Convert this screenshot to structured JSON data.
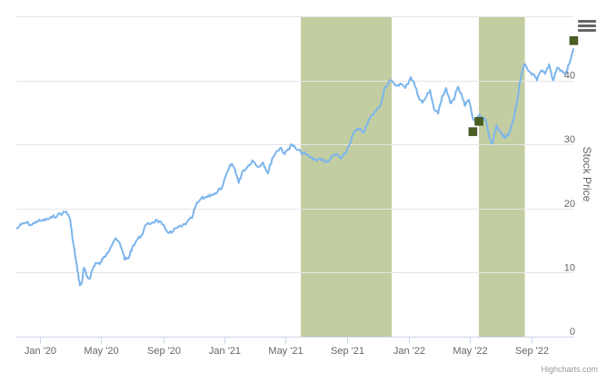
{
  "chart_data": {
    "type": "line",
    "title": "",
    "xlabel": "",
    "ylabel": "Stock Price",
    "ylim": [
      0,
      50
    ],
    "xlim": [
      "2019-11-15",
      "2022-11-25"
    ],
    "y_axis_side": "right",
    "y_ticks": [
      0,
      10,
      20,
      30,
      40
    ],
    "x_ticks": [
      {
        "date": "2020-01-01",
        "label": "Jan '20"
      },
      {
        "date": "2020-05-01",
        "label": "May '20"
      },
      {
        "date": "2020-09-01",
        "label": "Sep '20"
      },
      {
        "date": "2021-01-01",
        "label": "Jan '21"
      },
      {
        "date": "2021-05-01",
        "label": "May '21"
      },
      {
        "date": "2021-09-01",
        "label": "Sep '21"
      },
      {
        "date": "2022-01-01",
        "label": "Jan '22"
      },
      {
        "date": "2022-05-01",
        "label": "May '22"
      },
      {
        "date": "2022-09-01",
        "label": "Sep '22"
      }
    ],
    "grid": true,
    "line_color": "#7cb5ec",
    "band_color": "#c2cda1",
    "marker_color": "#4b5e23",
    "bands": [
      {
        "from": "2021-06-01",
        "to": "2021-11-28"
      },
      {
        "from": "2022-05-20",
        "to": "2022-08-19"
      }
    ],
    "markers": [
      {
        "date": "2022-05-08",
        "value": 32.0
      },
      {
        "date": "2022-05-20",
        "value": 33.6
      },
      {
        "date": "2022-11-24",
        "value": 46.2
      }
    ],
    "series": [
      {
        "points": [
          [
            "2019-11-15",
            16.8
          ],
          [
            "2019-11-25",
            17.5
          ],
          [
            "2019-12-05",
            17.8
          ],
          [
            "2019-12-15",
            17.4
          ],
          [
            "2019-12-25",
            18.0
          ],
          [
            "2020-01-05",
            18.1
          ],
          [
            "2020-01-15",
            18.3
          ],
          [
            "2020-01-25",
            18.6
          ],
          [
            "2020-02-05",
            19.0
          ],
          [
            "2020-02-15",
            19.3
          ],
          [
            "2020-02-22",
            19.5
          ],
          [
            "2020-03-01",
            18.2
          ],
          [
            "2020-03-05",
            15.5
          ],
          [
            "2020-03-10",
            13.0
          ],
          [
            "2020-03-13",
            11.5
          ],
          [
            "2020-03-17",
            9.5
          ],
          [
            "2020-03-20",
            8.0
          ],
          [
            "2020-03-24",
            8.5
          ],
          [
            "2020-03-28",
            10.8
          ],
          [
            "2020-04-02",
            9.5
          ],
          [
            "2020-04-08",
            9.0
          ],
          [
            "2020-04-14",
            10.5
          ],
          [
            "2020-04-20",
            11.5
          ],
          [
            "2020-04-28",
            11.3
          ],
          [
            "2020-05-05",
            12.2
          ],
          [
            "2020-05-12",
            13.0
          ],
          [
            "2020-05-20",
            14.0
          ],
          [
            "2020-05-28",
            15.2
          ],
          [
            "2020-06-05",
            14.8
          ],
          [
            "2020-06-12",
            13.5
          ],
          [
            "2020-06-18",
            12.0
          ],
          [
            "2020-06-25",
            12.3
          ],
          [
            "2020-07-02",
            14.0
          ],
          [
            "2020-07-10",
            15.0
          ],
          [
            "2020-07-20",
            15.8
          ],
          [
            "2020-07-30",
            17.5
          ],
          [
            "2020-08-10",
            17.8
          ],
          [
            "2020-08-20",
            18.2
          ],
          [
            "2020-08-30",
            17.5
          ],
          [
            "2020-09-08",
            16.5
          ],
          [
            "2020-09-18",
            16.2
          ],
          [
            "2020-09-28",
            17.0
          ],
          [
            "2020-10-08",
            17.2
          ],
          [
            "2020-10-18",
            17.8
          ],
          [
            "2020-10-28",
            18.5
          ],
          [
            "2020-11-05",
            20.5
          ],
          [
            "2020-11-15",
            21.5
          ],
          [
            "2020-11-25",
            21.8
          ],
          [
            "2020-12-05",
            22.2
          ],
          [
            "2020-12-15",
            22.3
          ],
          [
            "2020-12-28",
            23.5
          ],
          [
            "2021-01-08",
            26.0
          ],
          [
            "2021-01-15",
            27.0
          ],
          [
            "2021-01-22",
            26.0
          ],
          [
            "2021-01-29",
            24.0
          ],
          [
            "2021-02-05",
            25.8
          ],
          [
            "2021-02-15",
            26.5
          ],
          [
            "2021-02-25",
            27.5
          ],
          [
            "2021-03-08",
            26.5
          ],
          [
            "2021-03-18",
            27.2
          ],
          [
            "2021-03-28",
            25.5
          ],
          [
            "2021-04-05",
            27.8
          ],
          [
            "2021-04-15",
            29.0
          ],
          [
            "2021-04-22",
            29.5
          ],
          [
            "2021-04-30",
            28.5
          ],
          [
            "2021-05-07",
            29.3
          ],
          [
            "2021-05-14",
            30.0
          ],
          [
            "2021-05-22",
            29.3
          ],
          [
            "2021-06-01",
            28.8
          ],
          [
            "2021-06-10",
            28.5
          ],
          [
            "2021-06-20",
            28.0
          ],
          [
            "2021-06-30",
            27.6
          ],
          [
            "2021-07-10",
            27.8
          ],
          [
            "2021-07-20",
            27.2
          ],
          [
            "2021-07-30",
            27.8
          ],
          [
            "2021-08-10",
            28.5
          ],
          [
            "2021-08-20",
            27.8
          ],
          [
            "2021-08-28",
            28.5
          ],
          [
            "2021-09-05",
            30.0
          ],
          [
            "2021-09-15",
            32.0
          ],
          [
            "2021-09-25",
            32.3
          ],
          [
            "2021-10-05",
            32.0
          ],
          [
            "2021-10-15",
            34.0
          ],
          [
            "2021-10-25",
            35.0
          ],
          [
            "2021-11-05",
            36.0
          ],
          [
            "2021-11-15",
            39.0
          ],
          [
            "2021-11-25",
            40.0
          ],
          [
            "2021-12-05",
            39.2
          ],
          [
            "2021-12-15",
            39.5
          ],
          [
            "2021-12-25",
            38.8
          ],
          [
            "2022-01-05",
            40.5
          ],
          [
            "2022-01-12",
            39.5
          ],
          [
            "2022-01-20",
            37.5
          ],
          [
            "2022-01-28",
            36.5
          ],
          [
            "2022-02-05",
            37.5
          ],
          [
            "2022-02-12",
            38.5
          ],
          [
            "2022-02-20",
            35.5
          ],
          [
            "2022-02-28",
            34.8
          ],
          [
            "2022-03-08",
            37.5
          ],
          [
            "2022-03-16",
            38.8
          ],
          [
            "2022-03-24",
            36.5
          ],
          [
            "2022-04-01",
            37.0
          ],
          [
            "2022-04-08",
            39.0
          ],
          [
            "2022-04-15",
            38.0
          ],
          [
            "2022-04-22",
            36.0
          ],
          [
            "2022-04-30",
            37.0
          ],
          [
            "2022-05-08",
            34.0
          ],
          [
            "2022-05-14",
            33.5
          ],
          [
            "2022-05-20",
            34.5
          ],
          [
            "2022-05-26",
            34.0
          ],
          [
            "2022-06-02",
            33.8
          ],
          [
            "2022-06-10",
            31.0
          ],
          [
            "2022-06-16",
            30.2
          ],
          [
            "2022-06-24",
            33.0
          ],
          [
            "2022-07-02",
            32.0
          ],
          [
            "2022-07-10",
            31.0
          ],
          [
            "2022-07-18",
            31.5
          ],
          [
            "2022-07-26",
            33.5
          ],
          [
            "2022-08-02",
            36.0
          ],
          [
            "2022-08-10",
            40.0
          ],
          [
            "2022-08-18",
            42.5
          ],
          [
            "2022-08-26",
            41.5
          ],
          [
            "2022-09-04",
            41.0
          ],
          [
            "2022-09-12",
            40.0
          ],
          [
            "2022-09-20",
            41.5
          ],
          [
            "2022-09-28",
            41.0
          ],
          [
            "2022-10-06",
            42.5
          ],
          [
            "2022-10-14",
            40.0
          ],
          [
            "2022-10-22",
            42.0
          ],
          [
            "2022-10-30",
            41.5
          ],
          [
            "2022-11-07",
            41.0
          ],
          [
            "2022-11-15",
            42.5
          ],
          [
            "2022-11-24",
            45.0
          ]
        ]
      }
    ]
  },
  "credits": "Highcharts.com",
  "menu_icon": "hamburger-menu-icon"
}
